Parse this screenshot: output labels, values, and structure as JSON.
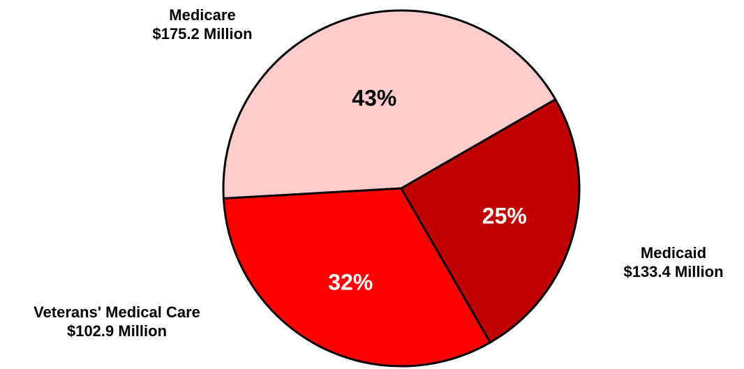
{
  "chart_data": {
    "type": "pie",
    "title": "",
    "slices": [
      {
        "name": "Medicare",
        "amount_label": "$175.2 Million",
        "percent_label": "43%",
        "value": 175.2,
        "percent": 43,
        "color": "#ffcccc",
        "pct_text_color": "#000000"
      },
      {
        "name": "Medicaid",
        "amount_label": "$133.4 Million",
        "percent_label": "32%",
        "value": 133.4,
        "percent": 32,
        "color": "#ff0000",
        "pct_text_color": "#ffffff"
      },
      {
        "name": "Veterans' Medical Care",
        "amount_label": "$102.9 Million",
        "percent_label": "25%",
        "value": 102.9,
        "percent": 25,
        "color": "#c00000",
        "pct_text_color": "#ffffff"
      }
    ],
    "legend": "none",
    "outline_color": "#000000"
  }
}
